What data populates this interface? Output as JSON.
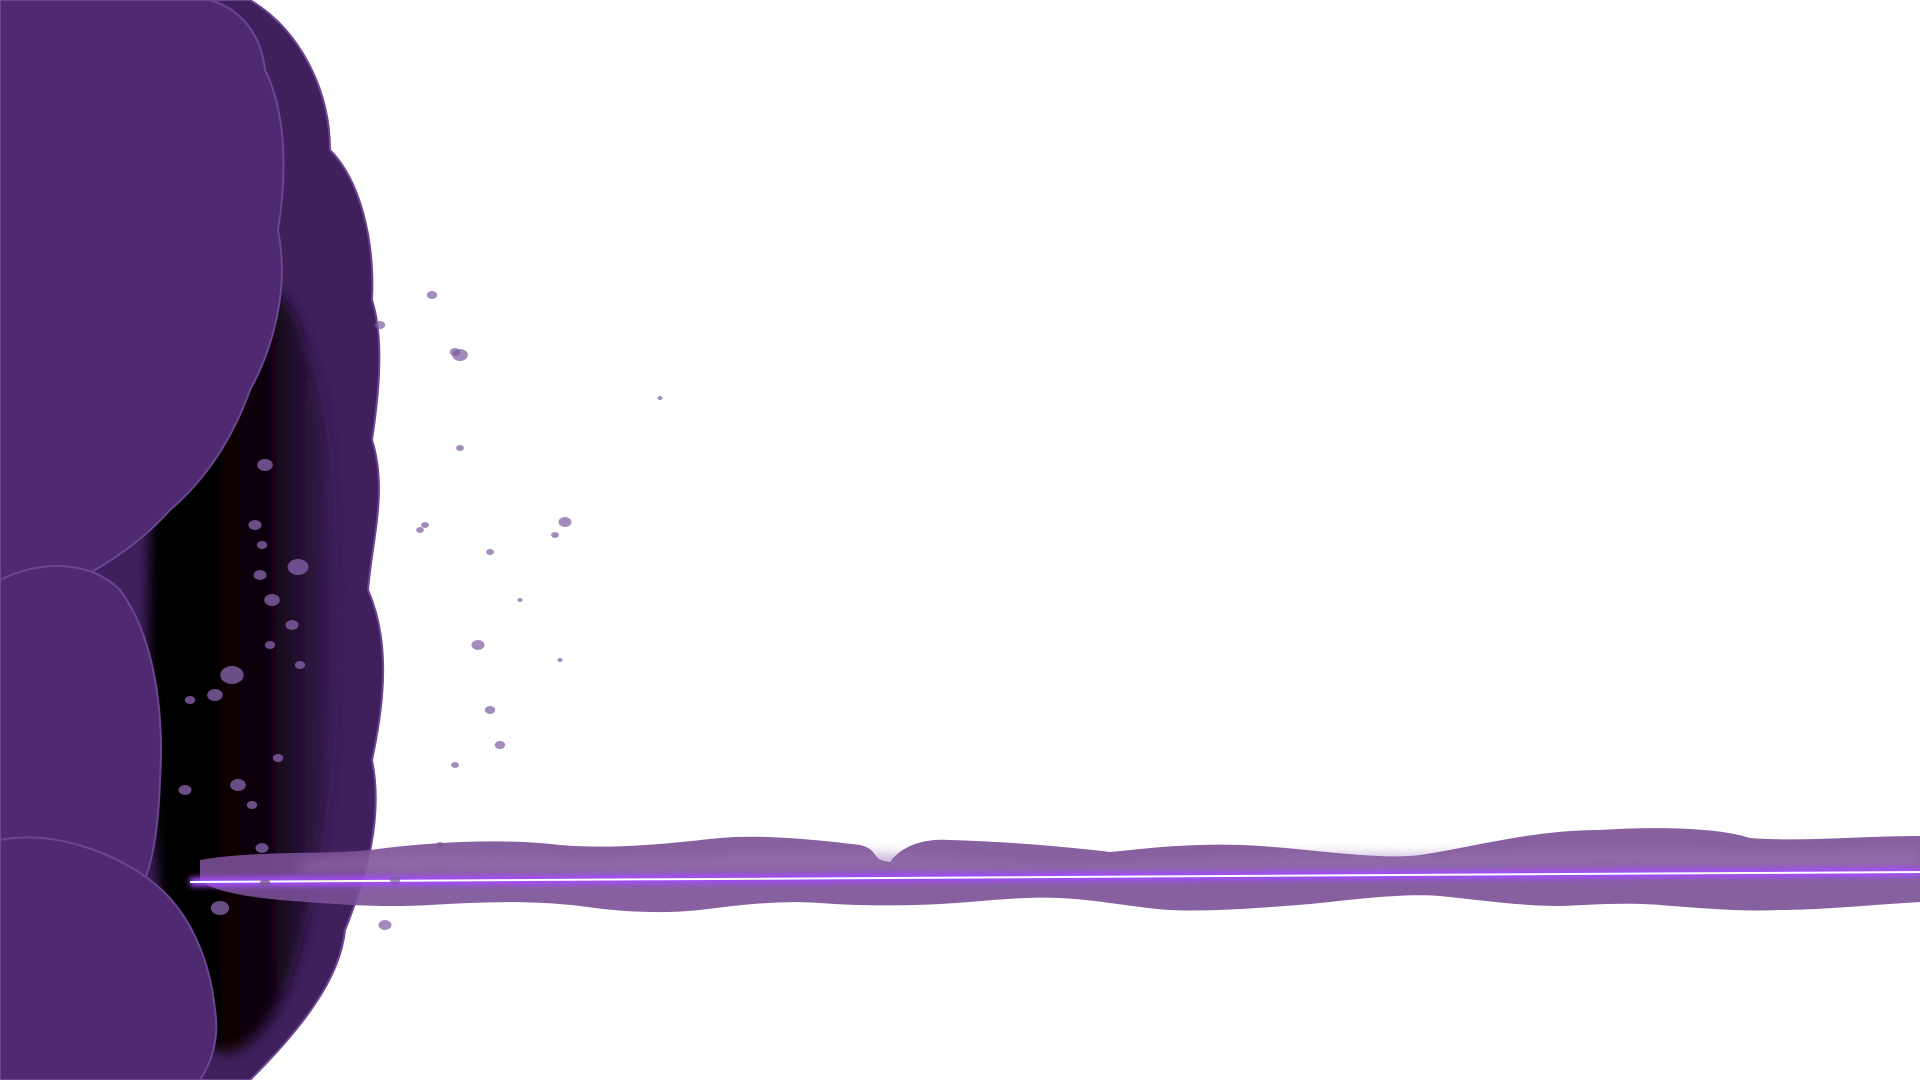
{
  "scene": {
    "background_color": "#ffffff",
    "portal": {
      "name": "purple-smoke-portal",
      "cloud_color": "#4f2a70",
      "cloud_shadow_color": "#3f1f5c",
      "cloud_edge_color": "#6b4690",
      "void_color": "#0a0008"
    },
    "beam": {
      "name": "energy-beam",
      "smoke_color": "#7a4f96",
      "smoke_light_color": "#9a73b2",
      "core_color": "#ffffff",
      "glow_color": "#a44cff"
    },
    "particles": {
      "name": "floating-particles",
      "color": "#7c5a9e"
    }
  }
}
